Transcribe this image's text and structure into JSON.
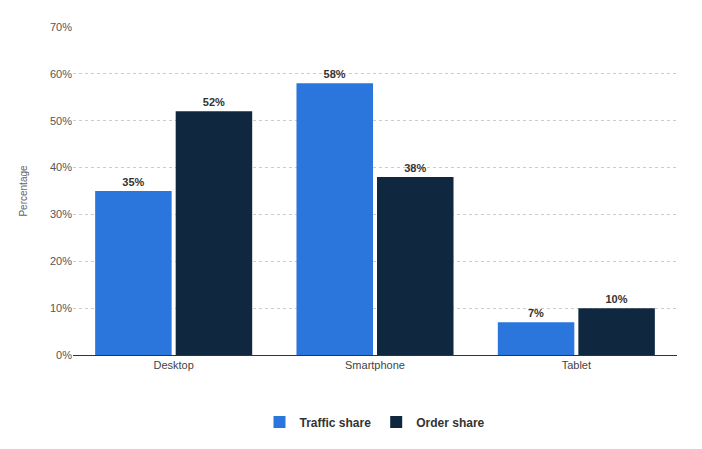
{
  "chart_data": {
    "type": "bar",
    "y_label": "Percentage",
    "categories": [
      "Desktop",
      "Smartphone",
      "Tablet"
    ],
    "series": [
      {
        "name": "Traffic share",
        "color": "#2a76dd",
        "values": [
          35,
          58,
          7
        ],
        "value_labels": [
          "35%",
          "58%",
          "7%"
        ]
      },
      {
        "name": "Order share",
        "color": "#0f2840",
        "values": [
          52,
          38,
          10
        ],
        "value_labels": [
          "52%",
          "38%",
          "10%"
        ]
      }
    ],
    "ylim": [
      0,
      70
    ],
    "yticks": [
      {
        "value": 0,
        "label": "0%"
      },
      {
        "value": 10,
        "label": "10%"
      },
      {
        "value": 20,
        "label": "20%"
      },
      {
        "value": 30,
        "label": "30%"
      },
      {
        "value": 40,
        "label": "40%"
      },
      {
        "value": 50,
        "label": "50%"
      },
      {
        "value": 60,
        "label": "60%"
      },
      {
        "value": 70,
        "label": "70%"
      }
    ],
    "grid": true,
    "legend": "bottom",
    "data_labels": true
  }
}
